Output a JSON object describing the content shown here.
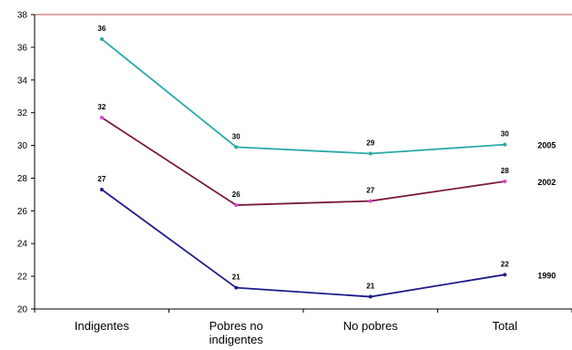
{
  "chart_data": {
    "type": "line",
    "categories": [
      "Indigentes",
      "Pobres no indigentes",
      "No pobres",
      "Total"
    ],
    "category_lines": [
      [
        "Indigentes"
      ],
      [
        "Pobres no",
        "indigentes"
      ],
      [
        "No pobres"
      ],
      [
        "Total"
      ]
    ],
    "ylim": [
      20,
      38
    ],
    "yticks": [
      20,
      22,
      24,
      26,
      28,
      30,
      32,
      34,
      36,
      38
    ],
    "grid": false,
    "legend": "none",
    "title": "",
    "xlabel": "",
    "ylabel": "",
    "series": [
      {
        "name": "2005",
        "color": "#2aa9a9",
        "values": [
          36.5,
          29.9,
          29.5,
          30.05
        ],
        "labels": [
          "36",
          "30",
          "29",
          "30"
        ]
      },
      {
        "name": "2002",
        "color": "#7a1b3c",
        "marker_color": "#e040e0",
        "values": [
          31.7,
          26.35,
          26.6,
          27.8
        ],
        "labels": [
          "32",
          "26",
          "27",
          "28"
        ]
      },
      {
        "name": "1990",
        "color": "#1c1c8a",
        "values": [
          27.3,
          21.3,
          20.75,
          22.1
        ],
        "labels": [
          "27",
          "21",
          "21",
          "22"
        ]
      }
    ]
  }
}
